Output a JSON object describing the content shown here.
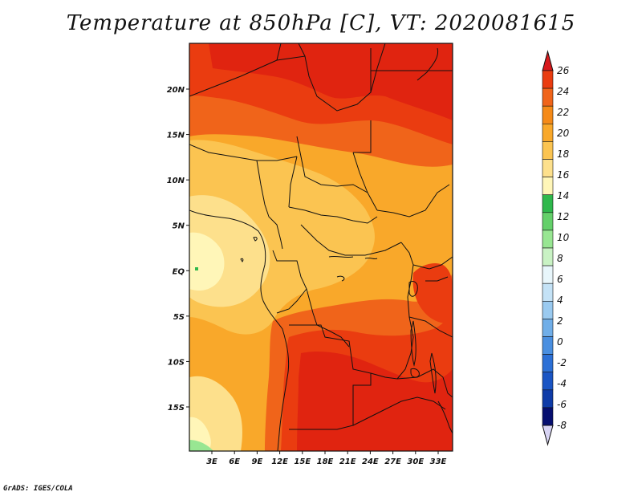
{
  "title": "Temperature at 850hPa [C], VT: 2020081615",
  "credit": "GrADS: IGES/COLA",
  "map": {
    "variable": "Temperature at 850hPa",
    "units": "C",
    "valid_time": "2020081615",
    "lat_ticks": [
      {
        "label": "20N",
        "value": 20
      },
      {
        "label": "15N",
        "value": 15
      },
      {
        "label": "10N",
        "value": 10
      },
      {
        "label": "5N",
        "value": 5
      },
      {
        "label": "EQ",
        "value": 0
      },
      {
        "label": "5S",
        "value": -5
      },
      {
        "label": "10S",
        "value": -10
      },
      {
        "label": "15S",
        "value": -15
      }
    ],
    "lon_ticks": [
      {
        "label": "3E",
        "value": 3
      },
      {
        "label": "6E",
        "value": 6
      },
      {
        "label": "9E",
        "value": 9
      },
      {
        "label": "12E",
        "value": 12
      },
      {
        "label": "15E",
        "value": 15
      },
      {
        "label": "18E",
        "value": 18
      },
      {
        "label": "21E",
        "value": 21
      },
      {
        "label": "24E",
        "value": 24
      },
      {
        "label": "27E",
        "value": 27
      },
      {
        "label": "30E",
        "value": 30
      },
      {
        "label": "33E",
        "value": 33
      }
    ],
    "colorbar": {
      "labels": [
        "26",
        "24",
        "22",
        "20",
        "18",
        "16",
        "14",
        "12",
        "10",
        "8",
        "6",
        "4",
        "2",
        "0",
        "-2",
        "-4",
        "-6",
        "-8"
      ],
      "colors": [
        "#d7191c",
        "#ea3c10",
        "#f0641a",
        "#f58a18",
        "#f9a82a",
        "#fbc451",
        "#fde08c",
        "#fff6b8",
        "#2fb84c",
        "#64d06a",
        "#98e692",
        "#c9f2c4",
        "#e8f6fb",
        "#c4e2f6",
        "#9acaf0",
        "#70aee8",
        "#4a8fe0",
        "#2c70d6",
        "#1a55c4",
        "#0e3ba8",
        "#060f70",
        "#d8d4f4"
      ]
    }
  }
}
